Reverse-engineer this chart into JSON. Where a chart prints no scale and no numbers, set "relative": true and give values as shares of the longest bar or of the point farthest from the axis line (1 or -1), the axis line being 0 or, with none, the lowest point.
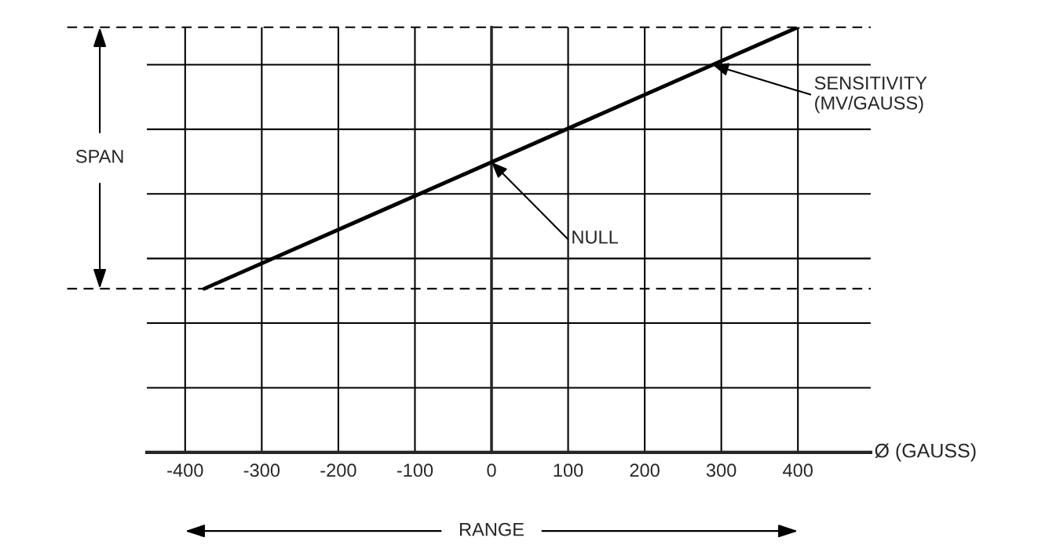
{
  "chart_data": {
    "type": "line",
    "relative": true,
    "xlabel": "Ø (GAUSS)",
    "x": [
      -375,
      400
    ],
    "values": [
      0.385,
      1
    ],
    "color": "#000000",
    "xlim": [
      -450,
      495
    ],
    "xticks": [
      -400,
      -300,
      -200,
      -100,
      0,
      100,
      200,
      300,
      400
    ],
    "grid": true,
    "marker": "none",
    "line_style": "solid",
    "ref_lines": [
      {
        "axis": "y",
        "value": 1,
        "line_style": "dashed",
        "color": "#000000"
      },
      {
        "axis": "y",
        "value": 0.385,
        "line_style": "dashed",
        "color": "#000000"
      }
    ],
    "annotations": [
      "SPAN",
      "RANGE",
      "NULL",
      "SENSITIVITY\n(MV/GAUSS)"
    ]
  }
}
